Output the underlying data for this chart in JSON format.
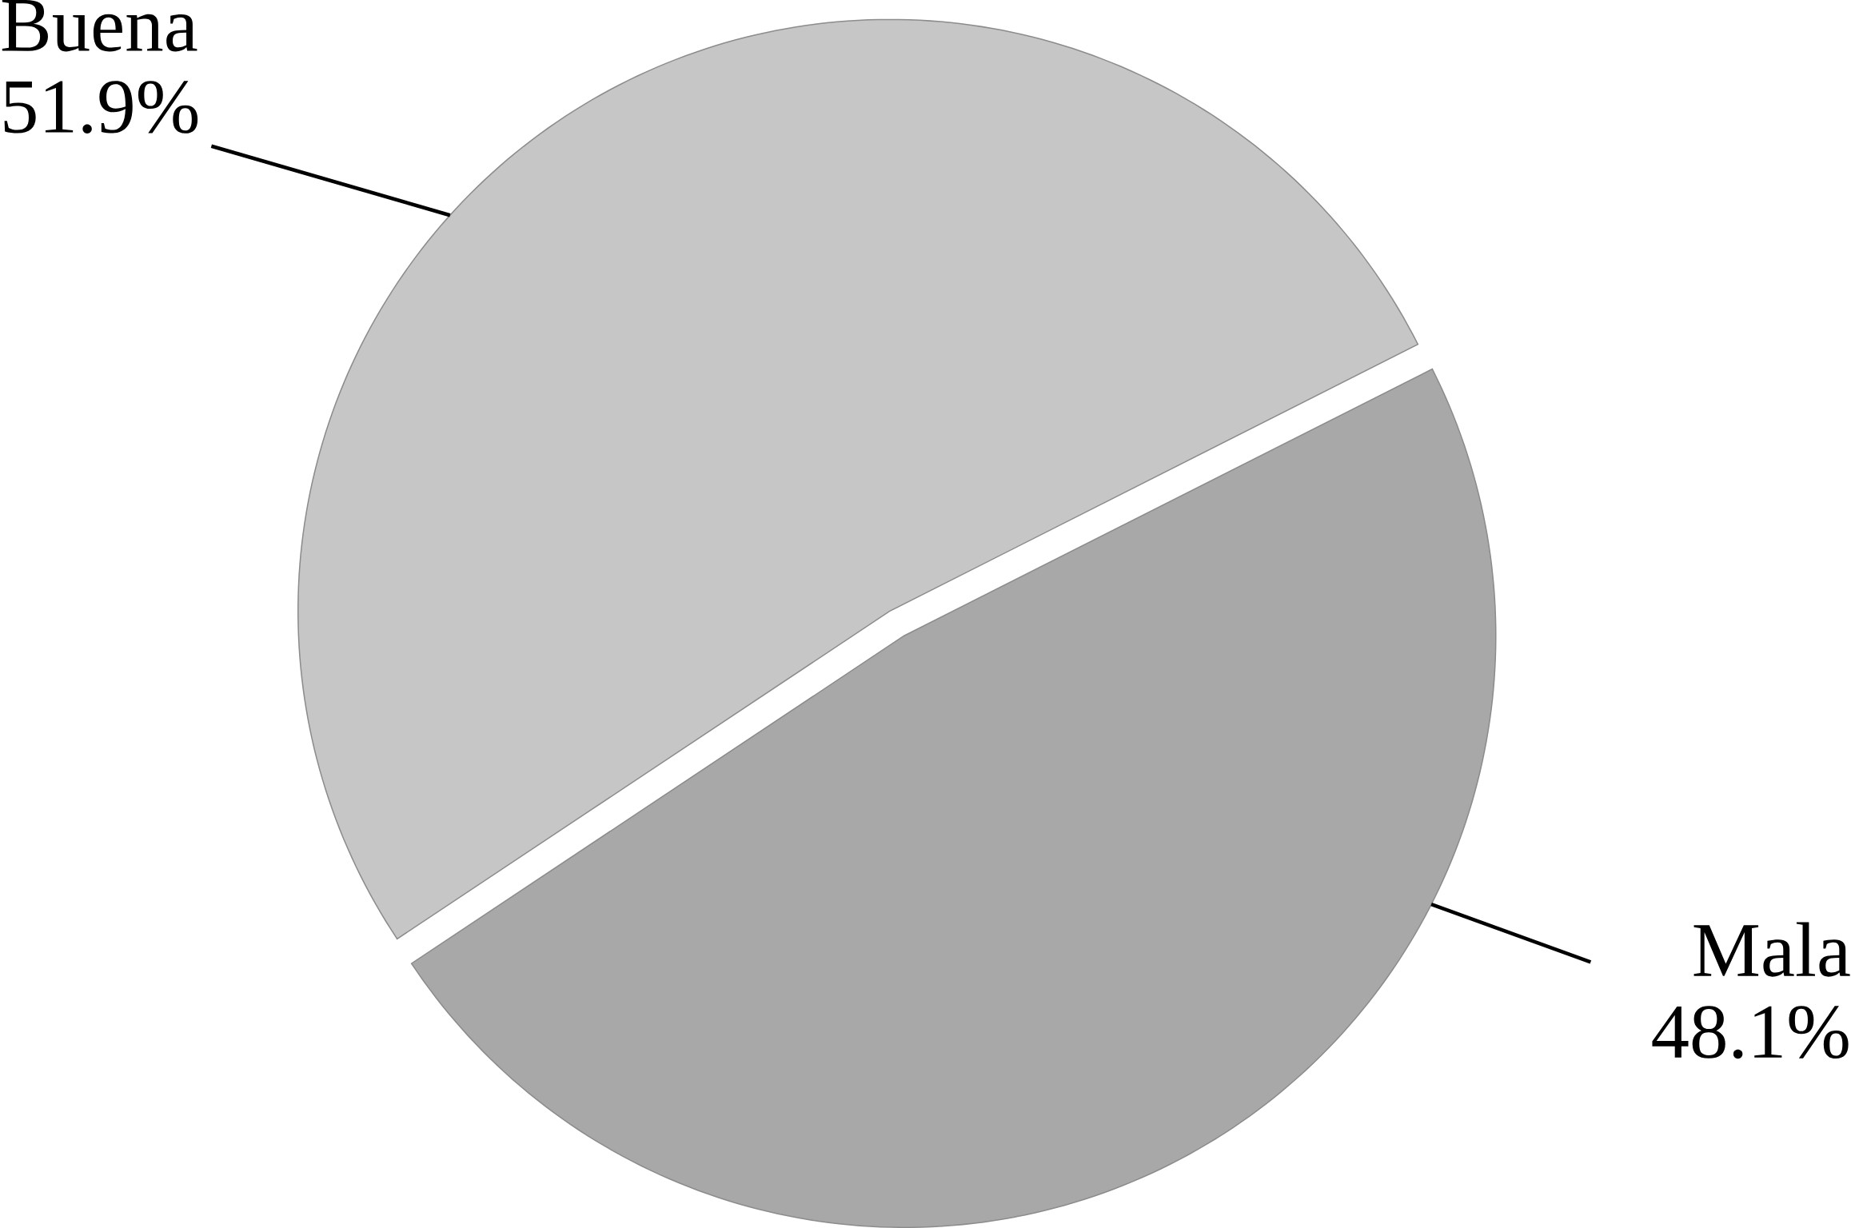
{
  "chart_data": {
    "type": "pie",
    "categories": [
      "Buena",
      "Mala"
    ],
    "values": [
      51.9,
      48.1
    ],
    "value_labels": [
      "51.9%",
      "48.1%"
    ],
    "colors": [
      "#c6c6c6",
      "#a8a8a8"
    ]
  }
}
